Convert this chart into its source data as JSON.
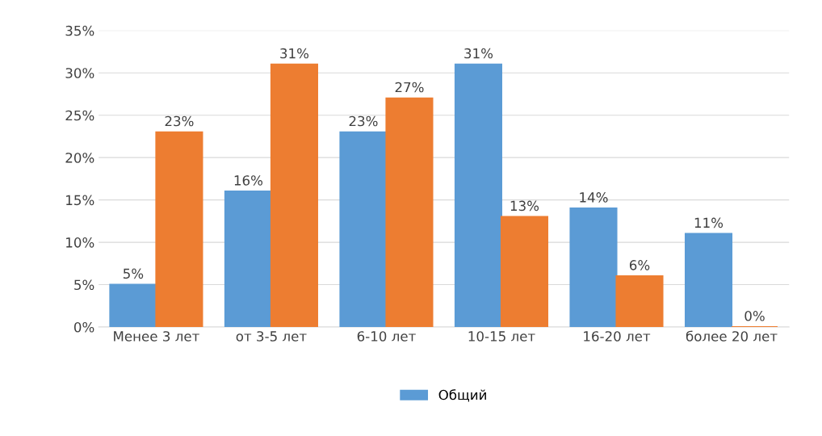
{
  "chart_data": {
    "type": "bar",
    "categories": [
      "Менее 3 лет",
      "от 3-5 лет",
      "6-10 лет",
      "10-15 лет",
      "16-20 лет",
      "более 20 лет"
    ],
    "series": [
      {
        "name": "Общий",
        "color": "#5b9bd5",
        "values": [
          5,
          16,
          23,
          31,
          14,
          11
        ],
        "value_labels": [
          "5%",
          "16%",
          "23%",
          "31%",
          "14%",
          "11%"
        ]
      },
      {
        "color": "#ed7d31",
        "values": [
          23,
          31,
          27,
          13,
          6,
          0
        ],
        "value_labels": [
          "23%",
          "31%",
          "27%",
          "13%",
          "6%",
          "0%"
        ]
      }
    ],
    "ylim": [
      0,
      35
    ],
    "yticks": [
      {
        "value": 0,
        "label": "0%"
      },
      {
        "value": 5,
        "label": "5%"
      },
      {
        "value": 10,
        "label": "10%"
      },
      {
        "value": 15,
        "label": "15%"
      },
      {
        "value": 20,
        "label": "20%"
      },
      {
        "value": 25,
        "label": "25%"
      },
      {
        "value": 30,
        "label": "30%"
      },
      {
        "value": 35,
        "label": "35%"
      }
    ],
    "grid": "y",
    "legend": "bottom"
  }
}
